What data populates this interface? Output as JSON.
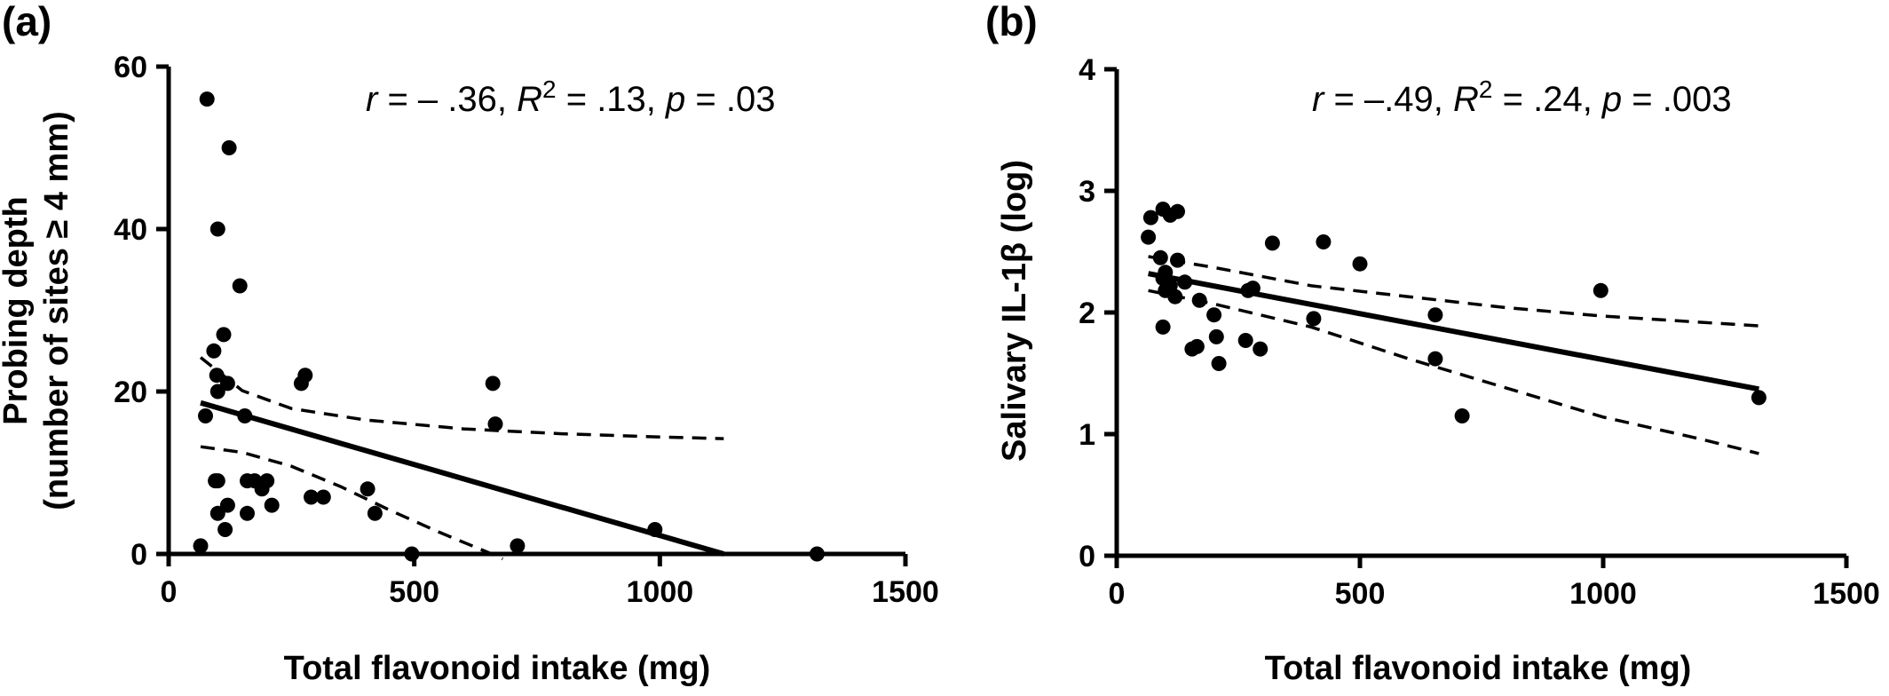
{
  "chart_data": [
    {
      "type": "scatter",
      "panel_label": "(a)",
      "annotation": {
        "r": "– .36",
        "R2": ".13",
        "p": ".03"
      },
      "xlabel": "Total flavonoid intake (mg)",
      "ylabel_line1": "Probing depth",
      "ylabel_line2": "(number of sites ≥ 4 mm)",
      "xlim": [
        0,
        1500
      ],
      "ylim": [
        0,
        60
      ],
      "xticks": [
        "0",
        "500",
        "1000",
        "1500"
      ],
      "yticks": [
        "0",
        "20",
        "40",
        "60"
      ],
      "points": [
        [
          78,
          56
        ],
        [
          123,
          50
        ],
        [
          100,
          40
        ],
        [
          145,
          33
        ],
        [
          112,
          27
        ],
        [
          92,
          25
        ],
        [
          98,
          22
        ],
        [
          100,
          20
        ],
        [
          120,
          21
        ],
        [
          75,
          17
        ],
        [
          155,
          17
        ],
        [
          270,
          21
        ],
        [
          278,
          22
        ],
        [
          660,
          21
        ],
        [
          665,
          16
        ],
        [
          95,
          9
        ],
        [
          100,
          9
        ],
        [
          160,
          9
        ],
        [
          175,
          9
        ],
        [
          200,
          9
        ],
        [
          190,
          8
        ],
        [
          210,
          6
        ],
        [
          160,
          5
        ],
        [
          100,
          5
        ],
        [
          120,
          6
        ],
        [
          115,
          3
        ],
        [
          290,
          7
        ],
        [
          315,
          7
        ],
        [
          405,
          8
        ],
        [
          420,
          5
        ],
        [
          710,
          1
        ],
        [
          990,
          3
        ],
        [
          65,
          1
        ],
        [
          495,
          0
        ],
        [
          1320,
          0
        ]
      ],
      "fit_line": [
        [
          65,
          18.6
        ],
        [
          1130,
          0
        ]
      ],
      "ci_upper": [
        [
          65,
          24.2
        ],
        [
          150,
          20.1
        ],
        [
          250,
          17.9
        ],
        [
          400,
          16.5
        ],
        [
          600,
          15.4
        ],
        [
          800,
          14.8
        ],
        [
          1000,
          14.4
        ],
        [
          1130,
          14.2
        ]
      ],
      "ci_lower": [
        [
          65,
          13.2
        ],
        [
          150,
          12.5
        ],
        [
          250,
          10.8
        ],
        [
          350,
          8.3
        ],
        [
          450,
          5.4
        ],
        [
          550,
          2.7
        ],
        [
          650,
          0.2
        ],
        [
          680,
          -0.6
        ]
      ]
    },
    {
      "type": "scatter",
      "panel_label": "(b)",
      "annotation": {
        "r": "–.49",
        "R2": ".24",
        "p": ".003"
      },
      "xlabel": "Total flavonoid intake (mg)",
      "ylabel": "Salivary IL-1β (log)",
      "xlim": [
        0,
        1500
      ],
      "ylim": [
        0,
        4
      ],
      "xticks": [
        "0",
        "500",
        "1000",
        "1500"
      ],
      "yticks": [
        "0",
        "1",
        "2",
        "3",
        "4"
      ],
      "points": [
        [
          95,
          2.85
        ],
        [
          110,
          2.8
        ],
        [
          125,
          2.83
        ],
        [
          70,
          2.78
        ],
        [
          65,
          2.62
        ],
        [
          90,
          2.45
        ],
        [
          125,
          2.43
        ],
        [
          100,
          2.33
        ],
        [
          95,
          2.28
        ],
        [
          110,
          2.22
        ],
        [
          140,
          2.25
        ],
        [
          100,
          2.18
        ],
        [
          120,
          2.13
        ],
        [
          270,
          2.18
        ],
        [
          280,
          2.2
        ],
        [
          320,
          2.57
        ],
        [
          425,
          2.58
        ],
        [
          500,
          2.4
        ],
        [
          170,
          2.1
        ],
        [
          200,
          1.98
        ],
        [
          205,
          1.8
        ],
        [
          155,
          1.7
        ],
        [
          165,
          1.72
        ],
        [
          210,
          1.58
        ],
        [
          295,
          1.7
        ],
        [
          265,
          1.77
        ],
        [
          95,
          1.88
        ],
        [
          405,
          1.95
        ],
        [
          655,
          1.98
        ],
        [
          655,
          1.62
        ],
        [
          710,
          1.15
        ],
        [
          995,
          2.18
        ],
        [
          1320,
          1.3
        ]
      ],
      "fit_line": [
        [
          65,
          2.32
        ],
        [
          1320,
          1.37
        ]
      ],
      "ci_upper": [
        [
          65,
          2.46
        ],
        [
          200,
          2.37
        ],
        [
          400,
          2.22
        ],
        [
          600,
          2.13
        ],
        [
          800,
          2.04
        ],
        [
          1000,
          1.97
        ],
        [
          1200,
          1.92
        ],
        [
          1320,
          1.89
        ]
      ],
      "ci_lower": [
        [
          65,
          2.18
        ],
        [
          200,
          2.07
        ],
        [
          400,
          1.88
        ],
        [
          600,
          1.62
        ],
        [
          800,
          1.38
        ],
        [
          1000,
          1.14
        ],
        [
          1200,
          0.96
        ],
        [
          1320,
          0.84
        ]
      ]
    }
  ]
}
